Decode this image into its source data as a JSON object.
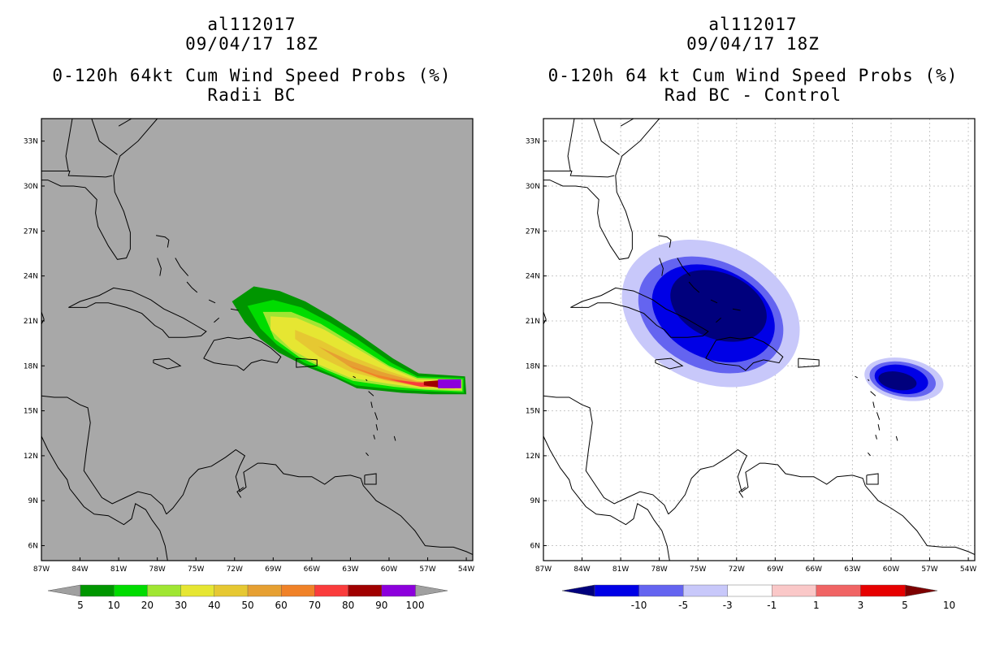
{
  "left_panel": {
    "storm_id": "al112017",
    "datetime": "09/04/17 18Z",
    "title": "0-120h 64kt Cum Wind Speed Probs (%)",
    "subtitle": "Radii BC",
    "colorbar": {
      "labels": [
        "5",
        "10",
        "20",
        "30",
        "40",
        "50",
        "60",
        "70",
        "80",
        "90",
        "100"
      ],
      "colors": [
        "#009600",
        "#00dc00",
        "#a0e632",
        "#e6e632",
        "#e6c832",
        "#e6a032",
        "#f08228",
        "#fa3c3c",
        "#a00000",
        "#8c00dc"
      ],
      "end_color": "#a0a0a0"
    }
  },
  "right_panel": {
    "storm_id": "al112017",
    "datetime": "09/04/17 18Z",
    "title": "0-120h 64 kt Cum Wind Speed Probs (%)",
    "subtitle": "Rad BC - Control",
    "colorbar": {
      "labels": [
        "-10",
        "-5",
        "-3",
        "-1",
        "1",
        "3",
        "5",
        "10"
      ],
      "colors": [
        "#00007d",
        "#0000e6",
        "#6464f0",
        "#c8c8fa",
        "#ffffff",
        "#fac8c8",
        "#f06464",
        "#e60000",
        "#7d0000"
      ]
    }
  },
  "axes": {
    "lat_labels": [
      "33N",
      "30N",
      "27N",
      "24N",
      "21N",
      "18N",
      "15N",
      "12N",
      "9N",
      "6N"
    ],
    "lon_labels": [
      "87W",
      "84W",
      "81W",
      "78W",
      "75W",
      "72W",
      "69W",
      "66W",
      "63W",
      "60W",
      "57W",
      "54W"
    ]
  },
  "map_colors": {
    "ocean_left": "#a8a8a8",
    "ocean_right": "#ffffff",
    "coast": "#000000",
    "grid": "#c8c8c8"
  }
}
